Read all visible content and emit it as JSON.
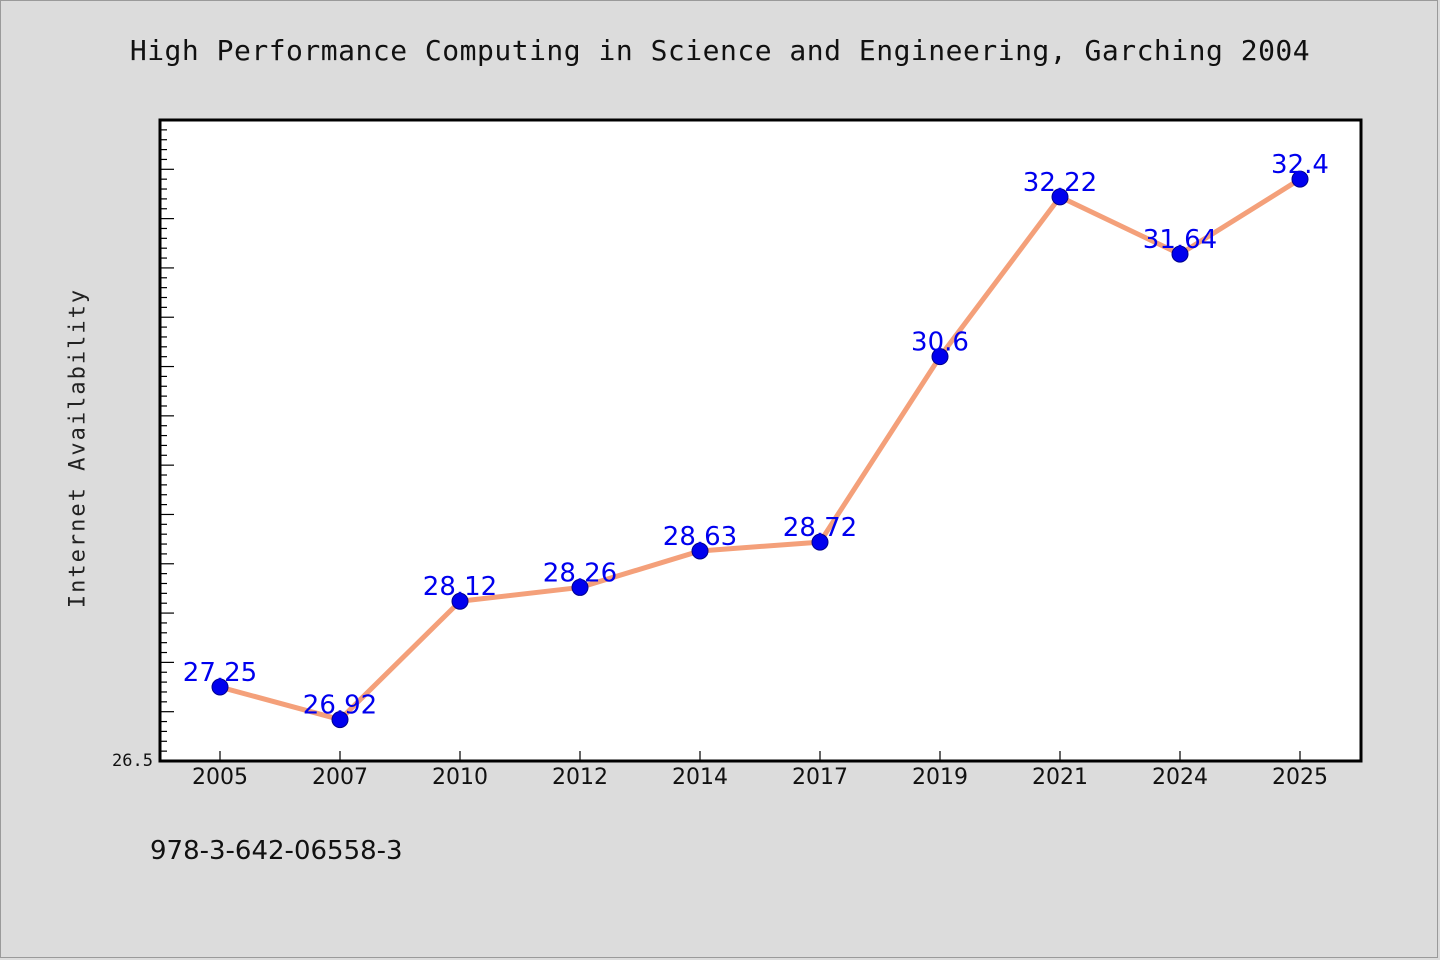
{
  "chart_data": {
    "type": "line",
    "title": "High Performance Computing in Science and Engineering, Garching 2004",
    "xlabel": "",
    "ylabel": "Internet Availability",
    "categories": [
      "2005",
      "2007",
      "2010",
      "2012",
      "2014",
      "2017",
      "2019",
      "2021",
      "2024",
      "2025"
    ],
    "values": [
      27.25,
      26.92,
      28.12,
      28.26,
      28.63,
      28.72,
      30.6,
      32.22,
      31.64,
      32.4
    ],
    "data_labels": [
      "27.25",
      "26.92",
      "28.12",
      "28.26",
      "28.63",
      "28.72",
      "30.6",
      "32.22",
      "31.64",
      "32.4"
    ],
    "ylim": [
      26.5,
      33.0
    ],
    "y_tick_label": "26.5",
    "grid": false,
    "line_color": "#f4a07a",
    "marker_color": "#0000ee",
    "label_color": "#0000ee"
  },
  "footer": {
    "isbn": "978-3-642-06558-3"
  }
}
